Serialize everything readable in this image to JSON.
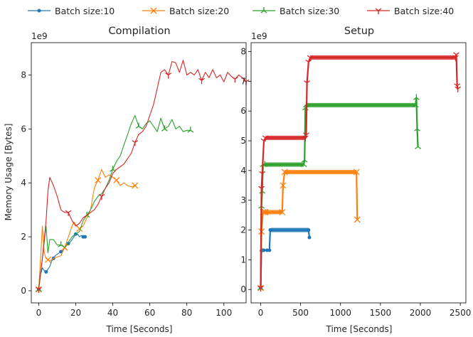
{
  "legend": [
    "Batch size:10",
    "Batch size:20",
    "Batch size:30",
    "Batch size:40"
  ],
  "colors": [
    "#1f77b4",
    "#ff7f0e",
    "#2ca02c",
    "#d62728"
  ],
  "markers": [
    "point",
    "x",
    "tri-up",
    "tri-down"
  ],
  "shared_ylabel": "Memory Usage [Bytes]",
  "chart_data": [
    {
      "type": "line",
      "title": "Compilation",
      "xlabel": "Time [Seconds]",
      "ylabel": "Memory Usage [Bytes]",
      "y_multiplier": "1e9",
      "xlim": [
        -4,
        112
      ],
      "ylim": [
        -0.45,
        9.2
      ],
      "xticks": [
        0,
        20,
        40,
        60,
        80,
        100
      ],
      "yticks": [
        0,
        2,
        4,
        6,
        8
      ],
      "grid": false,
      "legend_position": "top",
      "series": [
        {
          "name": "Batch size:10",
          "x": [
            0,
            1,
            2,
            3,
            4,
            5,
            6,
            7,
            8,
            9,
            10,
            11,
            12,
            13,
            14,
            15,
            16,
            17,
            18,
            19,
            20,
            21,
            22,
            23,
            24,
            25
          ],
          "y": [
            0.05,
            0.6,
            0.85,
            0.75,
            0.7,
            0.8,
            0.9,
            1.1,
            1.2,
            1.3,
            1.35,
            1.4,
            1.45,
            1.5,
            1.6,
            1.7,
            1.75,
            1.8,
            1.9,
            2.0,
            2.1,
            2.1,
            2.0,
            2.05,
            2.0,
            2.0
          ]
        },
        {
          "name": "Batch size:20",
          "x": [
            0,
            1,
            2,
            3,
            4,
            5,
            6,
            8,
            10,
            12,
            14,
            16,
            18,
            19,
            20,
            22,
            24,
            26,
            28,
            30,
            32,
            34,
            36,
            38,
            40,
            42,
            44,
            46,
            48,
            50,
            52
          ],
          "y": [
            0.05,
            1.2,
            2.4,
            1.4,
            1.2,
            1.15,
            1.1,
            1.2,
            1.25,
            1.3,
            1.6,
            2.0,
            2.4,
            2.55,
            2.45,
            2.3,
            2.4,
            2.7,
            3.0,
            3.8,
            4.1,
            4.5,
            4.2,
            4.3,
            4.2,
            4.1,
            3.9,
            4.0,
            3.9,
            3.85,
            3.9
          ]
        },
        {
          "name": "Batch size:30",
          "x": [
            0,
            2,
            4,
            5,
            6,
            8,
            10,
            12,
            14,
            16,
            18,
            20,
            22,
            24,
            26,
            28,
            30,
            32,
            34,
            36,
            38,
            40,
            42,
            44,
            46,
            48,
            50,
            52,
            54,
            56,
            58,
            60,
            62,
            64,
            66,
            68,
            70,
            72,
            74,
            76,
            78,
            80,
            82
          ],
          "y": [
            0.05,
            1.2,
            2.4,
            1.4,
            1.9,
            1.9,
            1.7,
            1.7,
            1.6,
            1.8,
            2.0,
            2.1,
            2.2,
            2.6,
            2.8,
            3.0,
            3.3,
            3.5,
            3.6,
            3.8,
            4.1,
            4.5,
            4.8,
            5.0,
            5.4,
            5.8,
            6.2,
            6.5,
            6.1,
            6.0,
            6.2,
            6.3,
            6.1,
            5.9,
            6.4,
            6.0,
            6.1,
            6.35,
            6.0,
            6.1,
            5.9,
            5.95,
            5.95
          ]
        },
        {
          "name": "Batch size:40",
          "x": [
            0,
            2,
            4,
            5,
            6,
            8,
            10,
            12,
            14,
            16,
            18,
            20,
            22,
            24,
            26,
            28,
            30,
            32,
            34,
            36,
            38,
            40,
            42,
            44,
            46,
            48,
            50,
            52,
            54,
            56,
            58,
            60,
            62,
            64,
            66,
            68,
            70,
            72,
            74,
            76,
            78,
            80,
            82,
            84,
            86,
            88,
            90,
            92,
            94,
            96,
            98,
            100,
            102,
            104,
            106,
            108,
            110,
            112
          ],
          "y": [
            0.05,
            1.2,
            2.6,
            3.7,
            4.2,
            3.9,
            3.5,
            3.0,
            2.9,
            2.9,
            2.6,
            2.4,
            2.5,
            2.7,
            2.8,
            2.9,
            3.0,
            3.2,
            3.5,
            3.8,
            4.0,
            4.35,
            4.5,
            4.6,
            4.7,
            4.9,
            5.1,
            5.5,
            5.8,
            5.9,
            6.1,
            6.5,
            6.9,
            7.5,
            8.1,
            8.2,
            8.0,
            8.5,
            8.45,
            8.1,
            8.55,
            8.0,
            8.1,
            8.0,
            8.2,
            7.8,
            8.1,
            7.9,
            8.2,
            7.9,
            8.0,
            7.75,
            8.1,
            7.95,
            7.85,
            8.0,
            7.9,
            7.75
          ]
        }
      ]
    },
    {
      "type": "line",
      "title": "Setup",
      "xlabel": "Time [Seconds]",
      "ylabel": "",
      "y_multiplier": "1e9",
      "xlim": [
        -120,
        2570
      ],
      "ylim": [
        -0.45,
        8.3
      ],
      "xticks": [
        0,
        500,
        1000,
        1500,
        2000,
        2500
      ],
      "yticks": [
        0,
        1,
        2,
        3,
        4,
        5,
        6,
        7,
        8
      ],
      "grid": false,
      "series": [
        {
          "name": "Batch size:10",
          "x": [
            0,
            10,
            20,
            40,
            80,
            110,
            120,
            130,
            600,
            610
          ],
          "y": [
            0.05,
            1.3,
            1.32,
            1.32,
            1.32,
            1.32,
            2.0,
            2.0,
            2.0,
            1.75
          ]
        },
        {
          "name": "Batch size:20",
          "x": [
            0,
            10,
            30,
            50,
            60,
            270,
            280,
            300,
            1200,
            1210
          ],
          "y": [
            0.05,
            1.95,
            2.6,
            2.6,
            2.6,
            2.6,
            3.5,
            3.95,
            3.95,
            2.35
          ]
        },
        {
          "name": "Batch size:30",
          "x": [
            0,
            10,
            20,
            30,
            50,
            540,
            550,
            560,
            570,
            1940,
            1950,
            1960,
            1970
          ],
          "y": [
            0.05,
            2.8,
            3.3,
            4.2,
            4.2,
            4.2,
            4.35,
            6.1,
            6.2,
            6.2,
            6.45,
            5.4,
            4.8
          ]
        },
        {
          "name": "Batch size:40",
          "x": [
            0,
            10,
            20,
            40,
            60,
            560,
            570,
            580,
            600,
            620,
            2440,
            2450,
            2460,
            2470
          ],
          "y": [
            0.05,
            3.4,
            3.9,
            5.0,
            5.1,
            5.1,
            5.2,
            6.95,
            7.65,
            7.8,
            7.8,
            7.9,
            6.85,
            6.75
          ]
        }
      ]
    }
  ]
}
